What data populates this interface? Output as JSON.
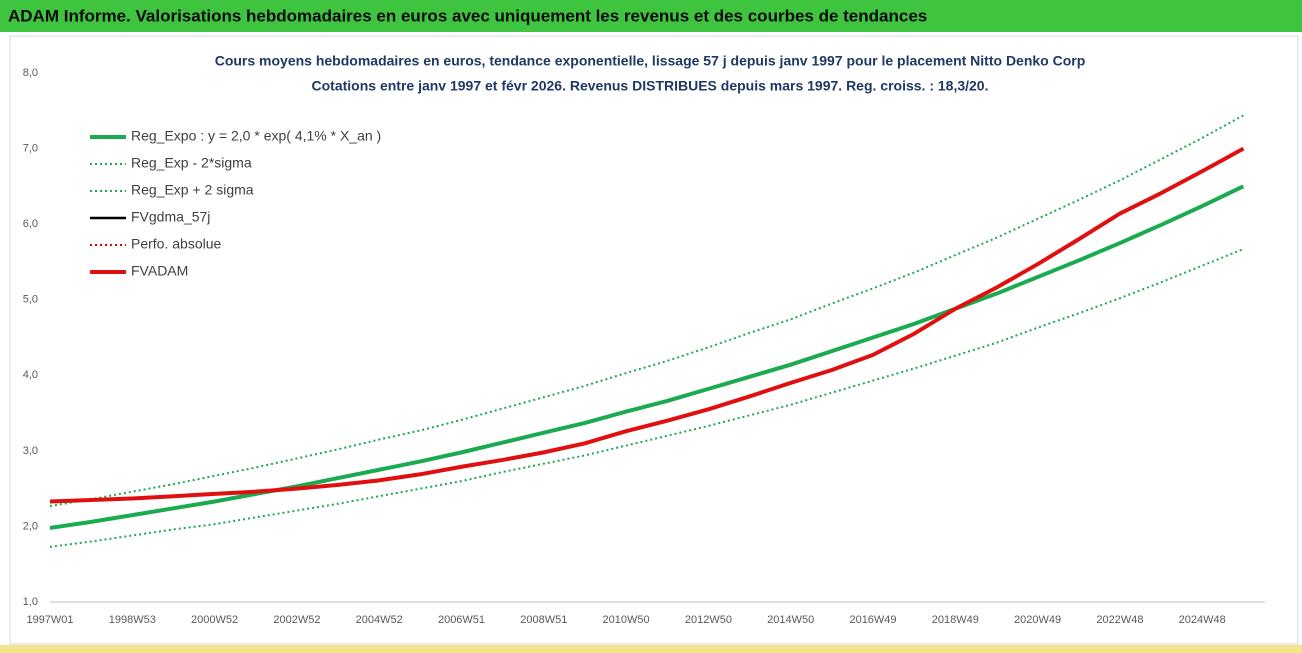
{
  "header": {
    "title": "ADAM Informe. Valorisations hebdomadaires en euros avec uniquement les revenus et des courbes de tendances"
  },
  "chart_data": {
    "type": "line",
    "title": "Cours moyens hebdomadaires en euros, tendance exponentielle, lissage 57 j depuis janv 1997 pour le placement Nitto Denko Corp",
    "subtitle": "Cotations entre janv 1997 et févr 2026. Revenus DISTRIBUES depuis mars 1997. Reg. croiss. : 18,3/20.",
    "categories": [
      "1997W01",
      null,
      "1998W53",
      null,
      "2000W52",
      null,
      "2002W52",
      null,
      "2004W52",
      null,
      "2006W51",
      null,
      "2008W51",
      null,
      "2010W50",
      null,
      "2012W50",
      null,
      "2014W50",
      null,
      "2016W49",
      null,
      "2018W49",
      null,
      "2020W49",
      null,
      "2022W48",
      null,
      "2024W48",
      null
    ],
    "ylim": [
      1,
      8
    ],
    "yticks": [
      {
        "value": 1,
        "label": "1,0"
      },
      {
        "value": 2,
        "label": "2,0"
      },
      {
        "value": 3,
        "label": "3,0"
      },
      {
        "value": 4,
        "label": "4,0"
      },
      {
        "value": 5,
        "label": "5,0"
      },
      {
        "value": 6,
        "label": "6,0"
      },
      {
        "value": 7,
        "label": "7,0"
      },
      {
        "value": 8,
        "label": "8,0"
      }
    ],
    "grid": false,
    "legend": "top-left",
    "series": [
      {
        "name": "Reg_Expo : y = 2,0 * exp( 4,1% *  X_an )",
        "color": "#1aaa50",
        "style": "thick",
        "values": [
          1.98,
          2.06,
          2.15,
          2.24,
          2.33,
          2.43,
          2.53,
          2.64,
          2.75,
          2.86,
          2.98,
          3.11,
          3.24,
          3.37,
          3.52,
          3.66,
          3.82,
          3.98,
          4.14,
          4.32,
          4.5,
          4.68,
          4.88,
          5.08,
          5.3,
          5.52,
          5.75,
          5.99,
          6.24,
          6.5
        ]
      },
      {
        "name": "Reg_Exp - 2*sigma",
        "color": "#1aaa50",
        "style": "dotted",
        "values": [
          1.73,
          1.8,
          1.88,
          1.96,
          2.03,
          2.12,
          2.21,
          2.3,
          2.4,
          2.5,
          2.6,
          2.72,
          2.83,
          2.94,
          3.07,
          3.2,
          3.33,
          3.47,
          3.61,
          3.77,
          3.93,
          4.09,
          4.26,
          4.43,
          4.63,
          4.82,
          5.02,
          5.23,
          5.45,
          5.67
        ]
      },
      {
        "name": "Reg_Exp + 2 sigma",
        "color": "#1aaa50",
        "style": "dotted",
        "values": [
          2.27,
          2.36,
          2.46,
          2.56,
          2.67,
          2.78,
          2.9,
          3.02,
          3.15,
          3.27,
          3.41,
          3.56,
          3.71,
          3.86,
          4.03,
          4.19,
          4.37,
          4.56,
          4.74,
          4.95,
          5.15,
          5.36,
          5.59,
          5.82,
          6.07,
          6.32,
          6.58,
          6.86,
          7.14,
          7.44
        ]
      },
      {
        "name": "FVgdma_57j",
        "color": "#000000",
        "style": "thin",
        "values": [
          2.33,
          2.35,
          2.37,
          2.4,
          2.43,
          2.46,
          2.5,
          2.55,
          2.61,
          2.69,
          2.79,
          2.88,
          2.98,
          3.1,
          3.26,
          3.4,
          3.55,
          3.72,
          3.9,
          4.07,
          4.27,
          4.55,
          4.88,
          5.16,
          5.47,
          5.8,
          6.14,
          6.41,
          6.7,
          7.0
        ]
      },
      {
        "name": "Perfo. absolue",
        "color": "#e00000",
        "style": "dotted",
        "values": [
          2.33,
          2.35,
          2.37,
          2.4,
          2.43,
          2.46,
          2.5,
          2.55,
          2.61,
          2.69,
          2.79,
          2.88,
          2.98,
          3.1,
          3.26,
          3.4,
          3.55,
          3.72,
          3.9,
          4.07,
          4.27,
          4.55,
          4.88,
          5.16,
          5.47,
          5.8,
          6.14,
          6.41,
          6.7,
          7.0
        ]
      },
      {
        "name": "FVADAM",
        "color": "#e01010",
        "style": "thick",
        "values": [
          2.33,
          2.35,
          2.37,
          2.4,
          2.43,
          2.46,
          2.5,
          2.55,
          2.61,
          2.69,
          2.79,
          2.88,
          2.98,
          3.1,
          3.26,
          3.4,
          3.55,
          3.72,
          3.9,
          4.07,
          4.27,
          4.55,
          4.88,
          5.16,
          5.47,
          5.8,
          6.14,
          6.41,
          6.7,
          7.0
        ]
      }
    ]
  }
}
